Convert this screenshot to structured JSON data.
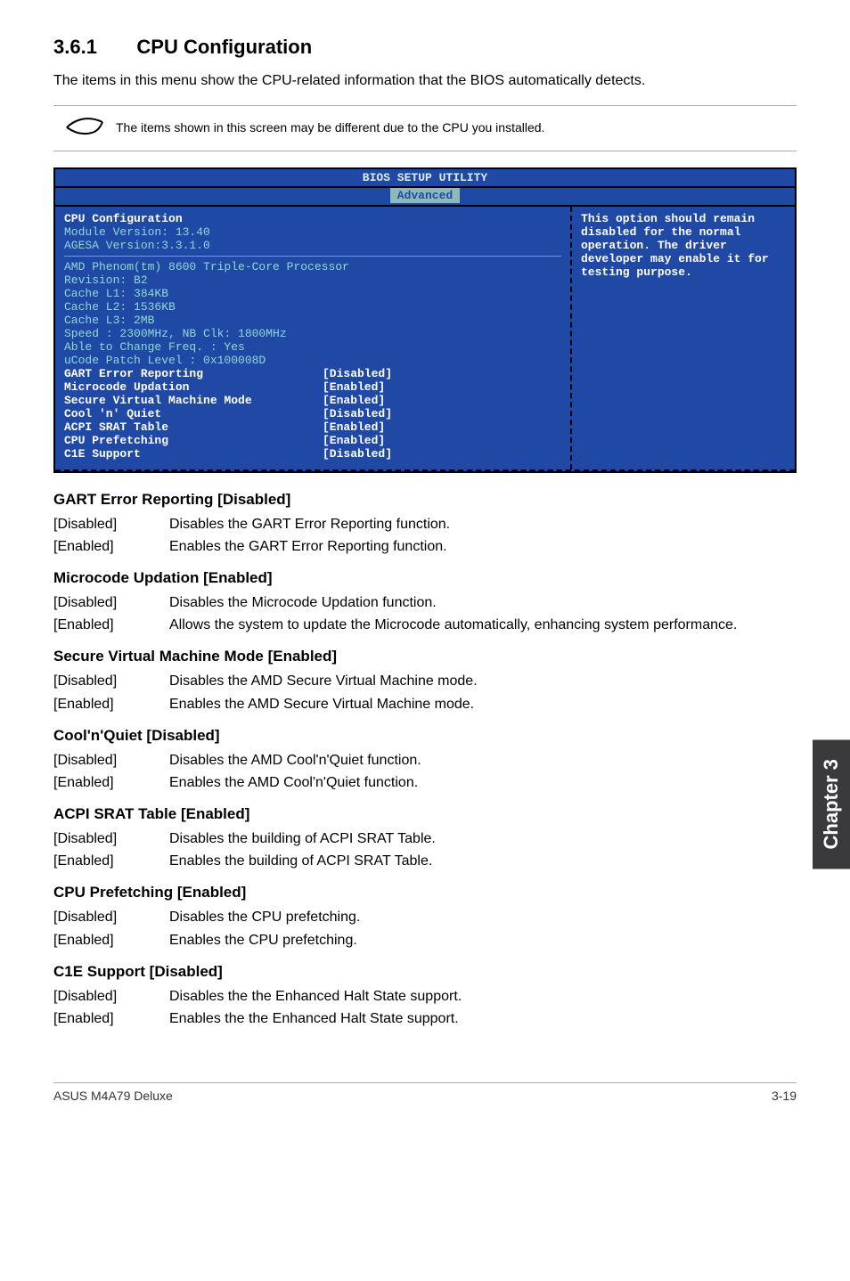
{
  "section": {
    "number": "3.6.1",
    "title": "CPU Configuration"
  },
  "intro": "The items in this menu show the CPU-related information that the BIOS automatically detects.",
  "note": "The items shown in this screen may be different due to the CPU you installed.",
  "bios": {
    "title": "BIOS SETUP UTILITY",
    "tab": "Advanced",
    "header": "CPU Configuration",
    "module_line": "Module Version: 13.40",
    "agesa_line": "AGESA Version:3.3.1.0",
    "cpu_name": "AMD Phenom(tm) 8600 Triple-Core Processor",
    "revision": "Revision: B2",
    "l1": "Cache L1: 384KB",
    "l2": "Cache L2: 1536KB",
    "l3": "Cache L3: 2MB",
    "speed": "Speed   : 2300MHz,    NB Clk: 1800MHz",
    "able": "Able to Change Freq.  : Yes",
    "ucode": "uCode Patch Level     : 0x100008D",
    "rows": [
      {
        "label": "GART Error Reporting",
        "value": "[Disabled]"
      },
      {
        "label": "Microcode Updation",
        "value": "[Enabled]"
      },
      {
        "label": "Secure Virtual Machine Mode",
        "value": "[Enabled]"
      },
      {
        "label": "Cool 'n' Quiet",
        "value": "[Disabled]"
      },
      {
        "label": "ACPI SRAT Table",
        "value": "[Enabled]"
      },
      {
        "label": "CPU Prefetching",
        "value": "[Enabled]"
      },
      {
        "label": "C1E Support",
        "value": "[Disabled]"
      }
    ],
    "help": "This option should remain disabled for the normal operation. The driver developer may enable it for testing purpose."
  },
  "sections": [
    {
      "heading": "GART Error Reporting [Disabled]",
      "items": [
        {
          "k": "[Disabled]",
          "v": "Disables the GART Error Reporting function."
        },
        {
          "k": "[Enabled]",
          "v": "Enables the GART Error Reporting function."
        }
      ]
    },
    {
      "heading": "Microcode Updation [Enabled]",
      "items": [
        {
          "k": "[Disabled]",
          "v": "Disables the Microcode Updation function."
        },
        {
          "k": "[Enabled]",
          "v": "Allows the system to update the Microcode automatically, enhancing system performance."
        }
      ]
    },
    {
      "heading": "Secure Virtual Machine Mode [Enabled]",
      "items": [
        {
          "k": "[Disabled]",
          "v": "Disables the AMD Secure Virtual Machine mode."
        },
        {
          "k": "[Enabled]",
          "v": "Enables the AMD Secure Virtual Machine mode."
        }
      ]
    },
    {
      "heading": "Cool'n'Quiet [Disabled]",
      "items": [
        {
          "k": "[Disabled]",
          "v": "Disables the AMD Cool'n'Quiet function."
        },
        {
          "k": "[Enabled]",
          "v": "Enables the AMD Cool'n'Quiet function."
        }
      ]
    },
    {
      "heading": "ACPI SRAT Table [Enabled]",
      "items": [
        {
          "k": "[Disabled]",
          "v": "Disables the building of ACPI SRAT Table."
        },
        {
          "k": "[Enabled]",
          "v": "Enables the building of ACPI SRAT Table."
        }
      ]
    },
    {
      "heading": "CPU Prefetching [Enabled]",
      "items": [
        {
          "k": "[Disabled]",
          "v": "Disables the CPU prefetching."
        },
        {
          "k": "[Enabled]",
          "v": "Enables the CPU prefetching."
        }
      ]
    },
    {
      "heading": "C1E Support [Disabled]",
      "items": [
        {
          "k": "[Disabled]",
          "v": "Disables the the Enhanced Halt State support."
        },
        {
          "k": "[Enabled]",
          "v": "Enables the the Enhanced Halt State support."
        }
      ]
    }
  ],
  "side_tab": "Chapter 3",
  "footer": {
    "left": "ASUS M4A79 Deluxe",
    "right": "3-19"
  }
}
